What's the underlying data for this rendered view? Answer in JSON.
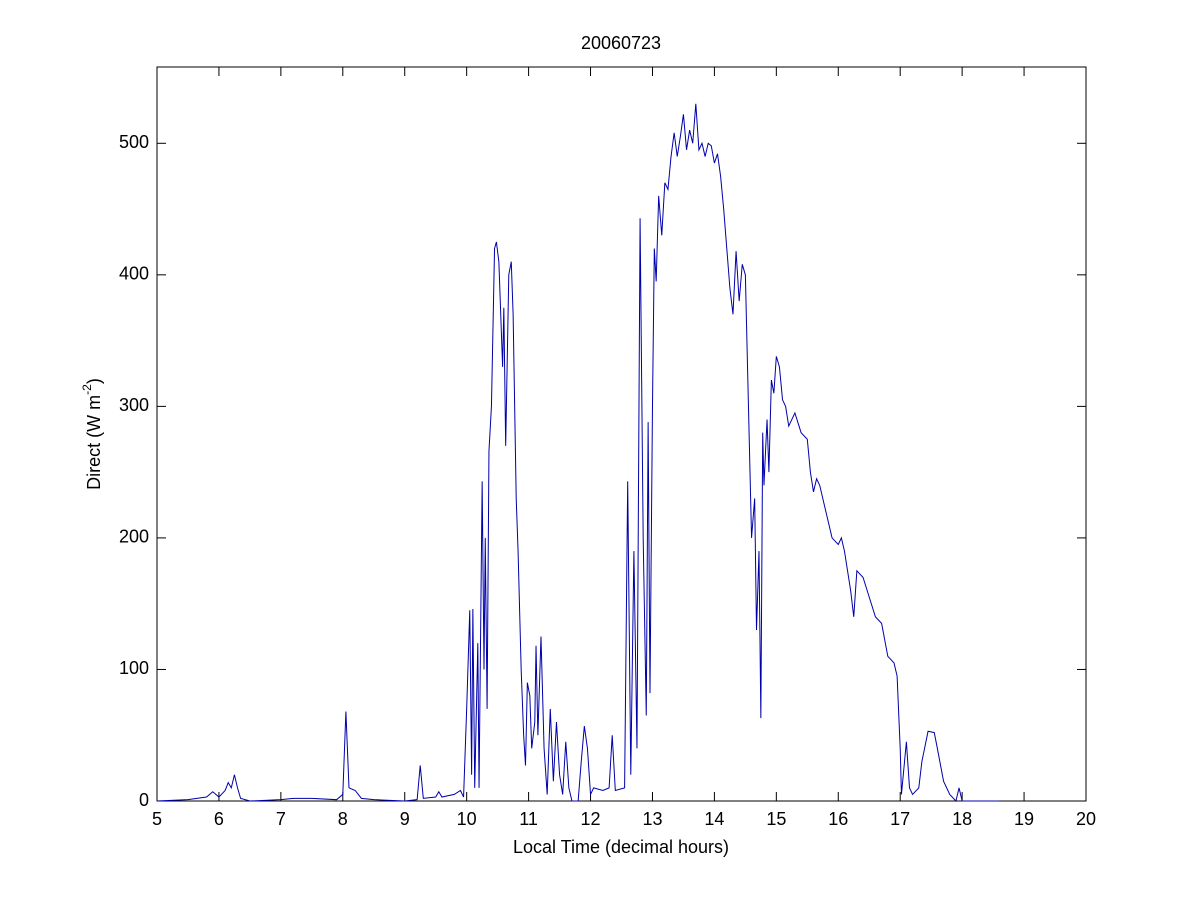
{
  "chart_data": {
    "type": "line",
    "title": "20060723",
    "xlabel": "Local Time (decimal hours)",
    "ylabel": {
      "text": "Direct (W m",
      "sup": "-2",
      "end": ")"
    },
    "xlim": [
      5,
      20
    ],
    "ylim": [
      0,
      558
    ],
    "xticks": [
      5,
      6,
      7,
      8,
      9,
      10,
      11,
      12,
      13,
      14,
      15,
      16,
      17,
      18,
      19,
      20
    ],
    "yticks": [
      0,
      100,
      200,
      300,
      400,
      500
    ],
    "grid": false,
    "series": [
      {
        "color": "#0000aa",
        "x": [
          5.0,
          5.5,
          5.8,
          5.9,
          6.0,
          6.1,
          6.15,
          6.2,
          6.25,
          6.3,
          6.35,
          6.5,
          7.0,
          7.2,
          7.5,
          7.9,
          8.0,
          8.05,
          8.1,
          8.2,
          8.3,
          8.5,
          9.0,
          9.2,
          9.25,
          9.3,
          9.5,
          9.55,
          9.6,
          9.8,
          9.9,
          9.95,
          10.0,
          10.05,
          10.08,
          10.1,
          10.13,
          10.18,
          10.2,
          10.25,
          10.28,
          10.3,
          10.33,
          10.36,
          10.4,
          10.45,
          10.48,
          10.52,
          10.58,
          10.6,
          10.63,
          10.68,
          10.72,
          10.75,
          10.8,
          10.83,
          10.88,
          10.92,
          10.95,
          10.98,
          11.02,
          11.05,
          11.1,
          11.12,
          11.15,
          11.2,
          11.25,
          11.3,
          11.35,
          11.4,
          11.45,
          11.5,
          11.55,
          11.6,
          11.65,
          11.7,
          11.8,
          11.85,
          11.9,
          11.95,
          12.0,
          12.05,
          12.2,
          12.3,
          12.35,
          12.4,
          12.55,
          12.6,
          12.65,
          12.7,
          12.75,
          12.8,
          12.85,
          12.9,
          12.93,
          12.96,
          13.0,
          13.03,
          13.06,
          13.1,
          13.15,
          13.2,
          13.25,
          13.3,
          13.35,
          13.4,
          13.45,
          13.5,
          13.55,
          13.6,
          13.65,
          13.7,
          13.75,
          13.8,
          13.85,
          13.9,
          13.95,
          14.0,
          14.05,
          14.1,
          14.15,
          14.2,
          14.25,
          14.3,
          14.35,
          14.4,
          14.45,
          14.5,
          14.55,
          14.6,
          14.65,
          14.68,
          14.72,
          14.75,
          14.78,
          14.8,
          14.85,
          14.88,
          14.92,
          14.96,
          15.0,
          15.05,
          15.1,
          15.15,
          15.2,
          15.3,
          15.4,
          15.5,
          15.55,
          15.6,
          15.65,
          15.7,
          15.8,
          15.9,
          16.0,
          16.05,
          16.1,
          16.2,
          16.25,
          16.3,
          16.4,
          16.5,
          16.6,
          16.7,
          16.8,
          16.9,
          16.95,
          17.0,
          17.02,
          17.05,
          17.1,
          17.15,
          17.2,
          17.3,
          17.35,
          17.45,
          17.55,
          17.6,
          17.7,
          17.8,
          17.9,
          17.95,
          18.0,
          18.6
        ],
        "values": [
          0,
          1,
          3,
          7,
          3,
          8,
          14,
          10,
          20,
          10,
          2,
          0,
          1,
          2,
          2,
          1,
          5,
          68,
          10,
          8,
          2,
          1,
          0,
          1,
          27,
          2,
          3,
          7,
          3,
          5,
          8,
          3,
          70,
          145,
          20,
          146,
          10,
          120,
          10,
          243,
          100,
          200,
          70,
          266,
          300,
          420,
          425,
          410,
          330,
          375,
          270,
          400,
          410,
          370,
          230,
          190,
          100,
          50,
          27,
          90,
          80,
          40,
          60,
          118,
          50,
          125,
          40,
          5,
          70,
          15,
          60,
          20,
          5,
          45,
          10,
          0,
          0,
          30,
          57,
          40,
          5,
          10,
          8,
          10,
          50,
          8,
          10,
          243,
          20,
          190,
          40,
          443,
          200,
          65,
          288,
          82,
          300,
          420,
          395,
          460,
          430,
          470,
          465,
          490,
          508,
          490,
          505,
          522,
          495,
          510,
          500,
          530,
          495,
          500,
          490,
          500,
          498,
          485,
          492,
          475,
          450,
          420,
          390,
          370,
          418,
          380,
          408,
          400,
          300,
          200,
          230,
          130,
          190,
          63,
          280,
          240,
          290,
          250,
          320,
          310,
          338,
          330,
          305,
          300,
          285,
          295,
          280,
          275,
          250,
          235,
          245,
          240,
          220,
          200,
          195,
          200,
          190,
          160,
          140,
          175,
          170,
          155,
          140,
          135,
          110,
          105,
          95,
          40,
          5,
          20,
          45,
          10,
          5,
          10,
          30,
          53,
          52,
          40,
          15,
          5,
          0,
          10,
          0,
          0
        ]
      }
    ]
  }
}
